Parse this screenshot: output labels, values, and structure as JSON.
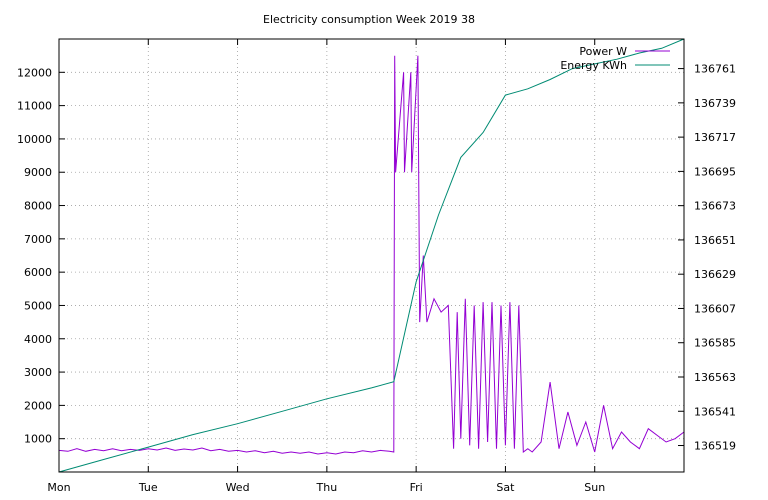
{
  "chart_data": {
    "type": "line",
    "title": "Electricity consumption Week 2019 38",
    "xlabel": "",
    "ylabel": "",
    "x_categories": [
      "Mon",
      "Tue",
      "Wed",
      "Thu",
      "Fri",
      "Sat",
      "Sun"
    ],
    "x_range_days": [
      0,
      7
    ],
    "y_left": {
      "ticks": [
        1000,
        2000,
        3000,
        4000,
        5000,
        6000,
        7000,
        8000,
        9000,
        10000,
        11000,
        12000
      ],
      "range": [
        0,
        13000
      ]
    },
    "y_right": {
      "ticks": [
        136519,
        136541,
        136563,
        136585,
        136607,
        136629,
        136651,
        136673,
        136695,
        136717,
        136739,
        136761
      ],
      "range": [
        136502,
        136780
      ]
    },
    "grid": true,
    "legend_position": "top-right",
    "series": [
      {
        "name": "Power W",
        "axis": "left",
        "color": "#9400d3",
        "points": [
          [
            0.0,
            650
          ],
          [
            0.1,
            620
          ],
          [
            0.2,
            700
          ],
          [
            0.3,
            620
          ],
          [
            0.4,
            680
          ],
          [
            0.5,
            640
          ],
          [
            0.6,
            700
          ],
          [
            0.7,
            640
          ],
          [
            0.8,
            680
          ],
          [
            0.9,
            650
          ],
          [
            1.0,
            700
          ],
          [
            1.1,
            660
          ],
          [
            1.2,
            720
          ],
          [
            1.3,
            650
          ],
          [
            1.4,
            690
          ],
          [
            1.5,
            660
          ],
          [
            1.6,
            720
          ],
          [
            1.7,
            640
          ],
          [
            1.8,
            680
          ],
          [
            1.9,
            620
          ],
          [
            2.0,
            650
          ],
          [
            2.1,
            600
          ],
          [
            2.2,
            640
          ],
          [
            2.3,
            580
          ],
          [
            2.4,
            620
          ],
          [
            2.5,
            560
          ],
          [
            2.6,
            600
          ],
          [
            2.7,
            560
          ],
          [
            2.8,
            600
          ],
          [
            2.9,
            540
          ],
          [
            3.0,
            580
          ],
          [
            3.1,
            540
          ],
          [
            3.2,
            600
          ],
          [
            3.3,
            580
          ],
          [
            3.4,
            640
          ],
          [
            3.5,
            600
          ],
          [
            3.6,
            650
          ],
          [
            3.7,
            620
          ],
          [
            3.75,
            600
          ],
          [
            3.76,
            12500
          ],
          [
            3.77,
            9000
          ],
          [
            3.86,
            12000
          ],
          [
            3.87,
            9000
          ],
          [
            3.94,
            12000
          ],
          [
            3.95,
            9000
          ],
          [
            4.01,
            12000
          ],
          [
            4.02,
            12500
          ],
          [
            4.04,
            4500
          ],
          [
            4.08,
            6500
          ],
          [
            4.12,
            4500
          ],
          [
            4.2,
            5200
          ],
          [
            4.28,
            4800
          ],
          [
            4.36,
            5000
          ],
          [
            4.42,
            700
          ],
          [
            4.46,
            4800
          ],
          [
            4.5,
            1000
          ],
          [
            4.55,
            5200
          ],
          [
            4.6,
            800
          ],
          [
            4.65,
            5000
          ],
          [
            4.7,
            700
          ],
          [
            4.75,
            5100
          ],
          [
            4.8,
            900
          ],
          [
            4.85,
            5100
          ],
          [
            4.9,
            700
          ],
          [
            4.95,
            5000
          ],
          [
            5.0,
            800
          ],
          [
            5.05,
            5100
          ],
          [
            5.1,
            700
          ],
          [
            5.15,
            5000
          ],
          [
            5.2,
            600
          ],
          [
            5.25,
            700
          ],
          [
            5.3,
            600
          ],
          [
            5.4,
            900
          ],
          [
            5.5,
            2700
          ],
          [
            5.6,
            700
          ],
          [
            5.7,
            1800
          ],
          [
            5.8,
            800
          ],
          [
            5.9,
            1500
          ],
          [
            6.0,
            600
          ],
          [
            6.1,
            2000
          ],
          [
            6.2,
            700
          ],
          [
            6.3,
            1200
          ],
          [
            6.4,
            900
          ],
          [
            6.5,
            700
          ],
          [
            6.6,
            1300
          ],
          [
            6.7,
            1100
          ],
          [
            6.8,
            900
          ],
          [
            6.9,
            1000
          ],
          [
            7.0,
            1200
          ]
        ]
      },
      {
        "name": "Energy KWh",
        "axis": "right",
        "color": "#008b73",
        "points": [
          [
            0.0,
            136502
          ],
          [
            0.5,
            136510
          ],
          [
            1.0,
            136518
          ],
          [
            1.5,
            136526
          ],
          [
            2.0,
            136533
          ],
          [
            2.5,
            136541
          ],
          [
            3.0,
            136549
          ],
          [
            3.5,
            136556
          ],
          [
            3.75,
            136560
          ],
          [
            4.0,
            136624
          ],
          [
            4.25,
            136667
          ],
          [
            4.5,
            136704
          ],
          [
            4.75,
            136720
          ],
          [
            5.0,
            136744
          ],
          [
            5.25,
            136748
          ],
          [
            5.5,
            136754
          ],
          [
            5.75,
            136761
          ],
          [
            6.0,
            136764
          ],
          [
            6.25,
            136767
          ],
          [
            6.5,
            136771
          ],
          [
            6.75,
            136774
          ],
          [
            7.0,
            136780
          ]
        ]
      }
    ]
  }
}
